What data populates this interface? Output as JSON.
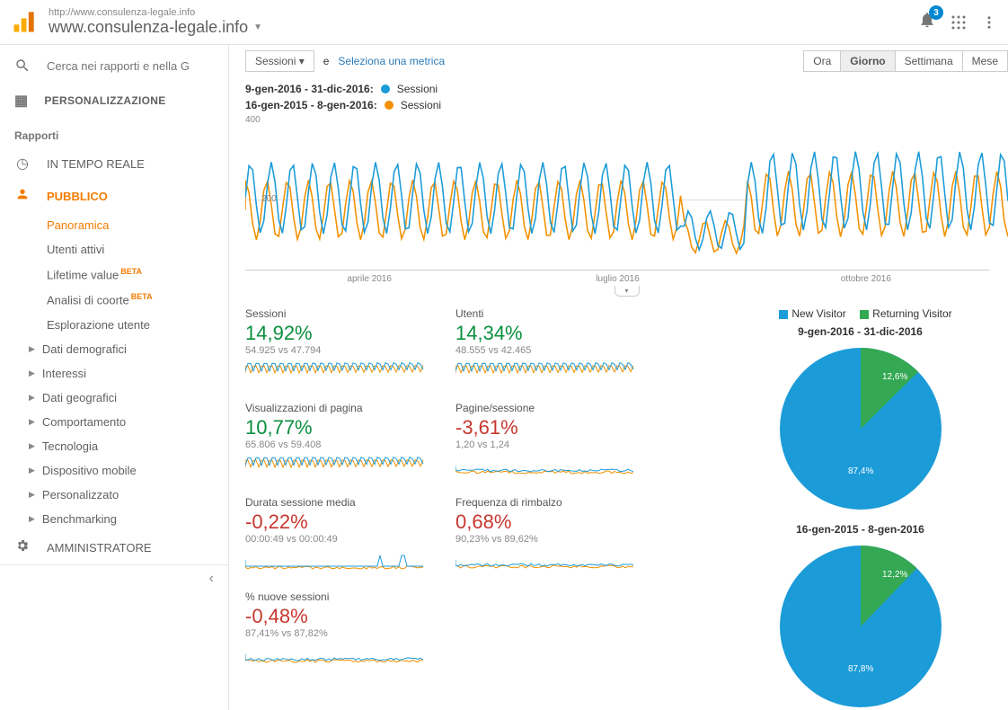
{
  "colors": {
    "blue": "#1b9bd8",
    "orange": "#f29100",
    "green_text": "#0a8f3f",
    "red_text": "#c7372f",
    "pie_green": "#34a853"
  },
  "header": {
    "url_small": "http://www.consulenza-legale.info",
    "url_main": "www.consulenza-legale.info",
    "bell_count": "3"
  },
  "sidebar": {
    "search_placeholder": "Cerca nei rapporti e nella G",
    "personalization": "PERSONALIZZAZIONE",
    "reports": "Rapporti",
    "realtime": "IN TEMPO REALE",
    "audience": "PUBBLICO",
    "subs": {
      "panoramica": "Panoramica",
      "utenti": "Utenti attivi",
      "lifetime": "Lifetime value",
      "coorte": "Analisi di coorte",
      "esplorazione": "Esplorazione utente"
    },
    "beta": "BETA",
    "exp": [
      "Dati demografici",
      "Interessi",
      "Dati geografici",
      "Comportamento",
      "Tecnologia",
      "Dispositivo mobile",
      "Personalizzato",
      "Benchmarking"
    ],
    "admin": "AMMINISTRATORE"
  },
  "toolbar": {
    "sessioni": "Sessioni",
    "e": "e",
    "select_metric": "Seleziona una metrica",
    "tabs": [
      "Ora",
      "Giorno",
      "Settimana",
      "Mese"
    ],
    "active_tab": 1
  },
  "chart": {
    "range1": "9-gen-2016 - 31-dic-2016:",
    "range2": "16-gen-2015 - 8-gen-2016:",
    "series_label": "Sessioni",
    "ymax": "400",
    "ymid": "200",
    "xticks": [
      "aprile 2016",
      "luglio 2016",
      "ottobre 2016"
    ]
  },
  "kpis": [
    {
      "title": "Sessioni",
      "pct": "14,92%",
      "cls": "green",
      "sub": "54.925 vs 47.794",
      "spark": "dense"
    },
    {
      "title": "Utenti",
      "pct": "14,34%",
      "cls": "green",
      "sub": "48.555 vs 42.465",
      "spark": "dense"
    },
    {
      "title": "Visualizzazioni di pagina",
      "pct": "10,77%",
      "cls": "green",
      "sub": "65.806 vs 59.408",
      "spark": "dense"
    },
    {
      "title": "Pagine/sessione",
      "pct": "-3,61%",
      "cls": "red",
      "sub": "1,20 vs 1,24",
      "spark": "flat"
    },
    {
      "title": "Durata sessione media",
      "pct": "-0,22%",
      "cls": "red",
      "sub": "00:00:49 vs 00:00:49",
      "spark": "spiky"
    },
    {
      "title": "Frequenza di rimbalzo",
      "pct": "0,68%",
      "cls": "red",
      "sub": "90,23% vs 89,62%",
      "spark": "flat"
    },
    {
      "title": "% nuove sessioni",
      "pct": "-0,48%",
      "cls": "red",
      "sub": "87,41% vs 87,82%",
      "spark": "flat"
    }
  ],
  "pies": {
    "legend_new": "New Visitor",
    "legend_ret": "Returning Visitor",
    "p1": {
      "title": "9-gen-2016 - 31-dic-2016",
      "new": 87.4,
      "ret": 12.6,
      "new_lbl": "87,4%",
      "ret_lbl": "12,6%"
    },
    "p2": {
      "title": "16-gen-2015 - 8-gen-2016",
      "new": 87.8,
      "ret": 12.2,
      "new_lbl": "87,8%",
      "ret_lbl": "12,2%"
    }
  }
}
